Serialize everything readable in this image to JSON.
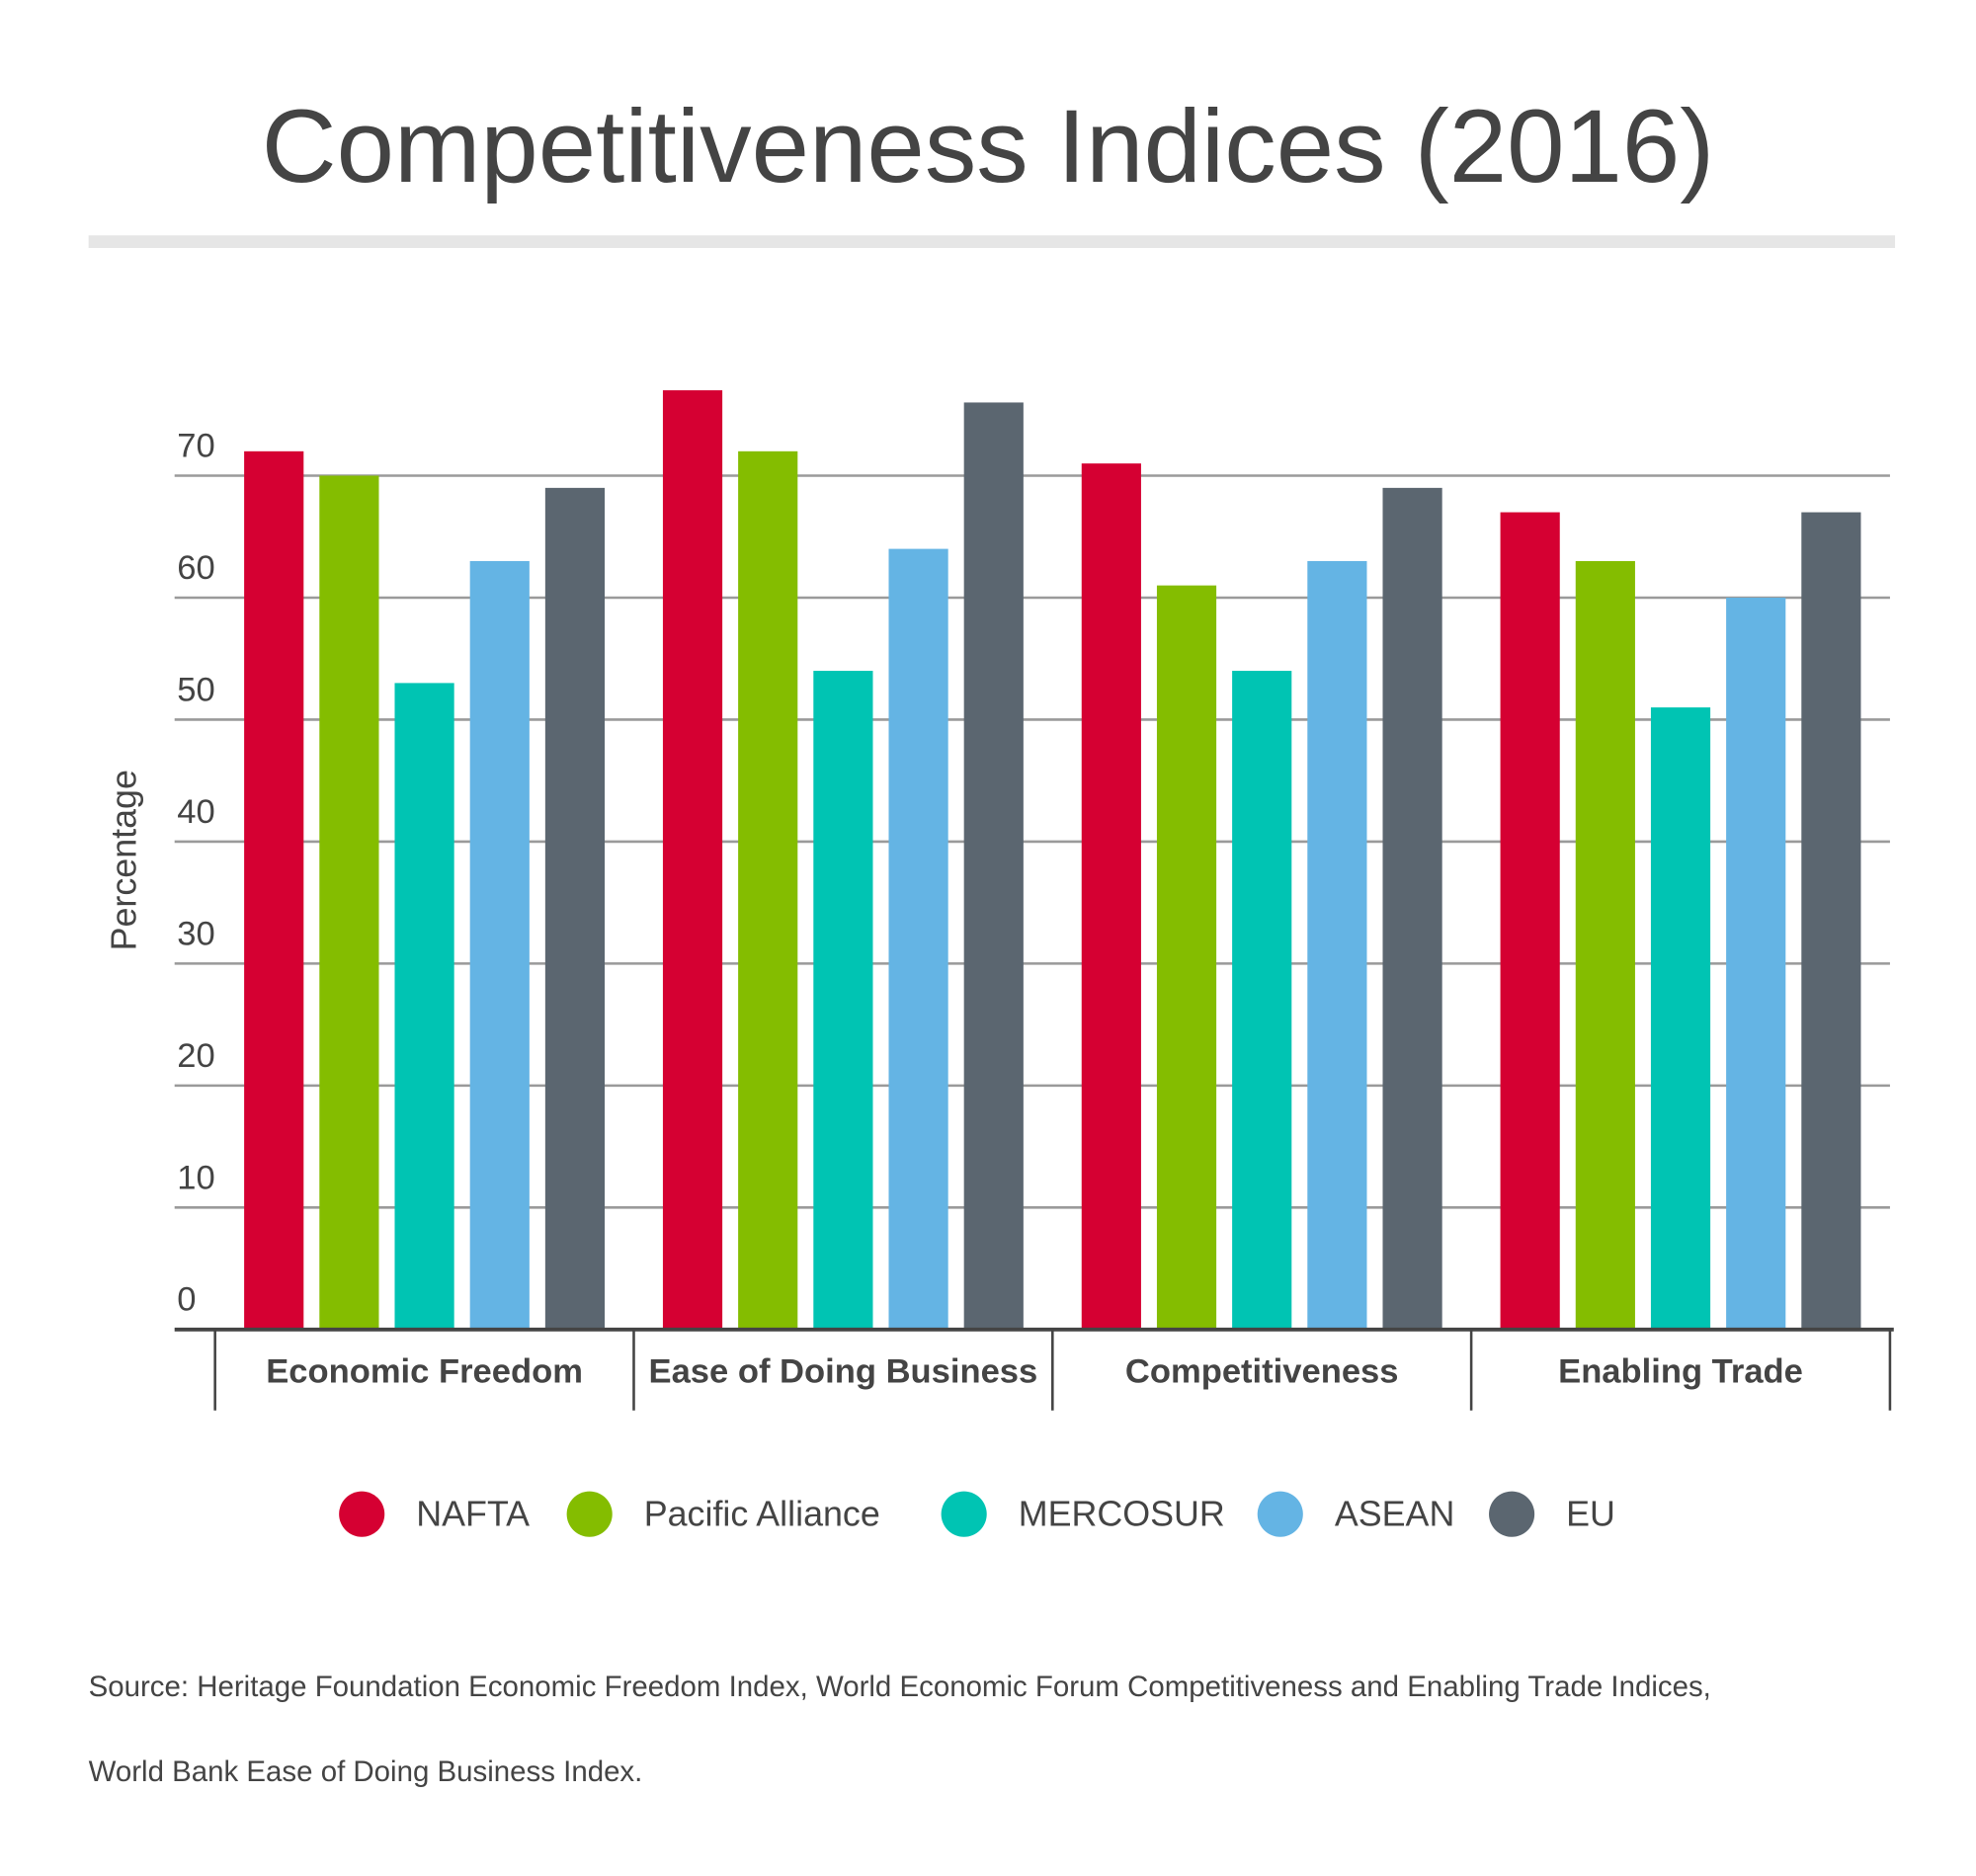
{
  "chart_data": {
    "type": "bar",
    "title": "Competitiveness Indices (2016)",
    "y_label": "Percentage",
    "categories": [
      "Economic Freedom",
      "Ease of Doing Business",
      "Competitiveness",
      "Enabling Trade"
    ],
    "series": [
      {
        "name": "NAFTA",
        "color": "#d50032",
        "values": [
          72,
          77,
          71,
          67
        ]
      },
      {
        "name": "Pacific Alliance",
        "color": "#84bd00",
        "values": [
          70,
          72,
          61,
          63
        ]
      },
      {
        "name": "MERCOSUR",
        "color": "#00c4b3",
        "values": [
          53,
          54,
          54,
          51
        ]
      },
      {
        "name": "ASEAN",
        "color": "#64b4e4",
        "values": [
          63,
          64,
          63,
          60
        ]
      },
      {
        "name": "EU",
        "color": "#5b6670",
        "values": [
          69,
          76,
          69,
          67
        ]
      }
    ],
    "ylim": [
      0,
      80
    ],
    "yticks": [
      0,
      10,
      20,
      30,
      40,
      50,
      60,
      70
    ],
    "grid": true,
    "legend": "bottom",
    "source": [
      "Source: Heritage Foundation Economic Freedom Index, World Economic Forum Competitiveness and Enabling Trade Indices,",
      "World Bank Ease of Doing Business Index."
    ]
  }
}
